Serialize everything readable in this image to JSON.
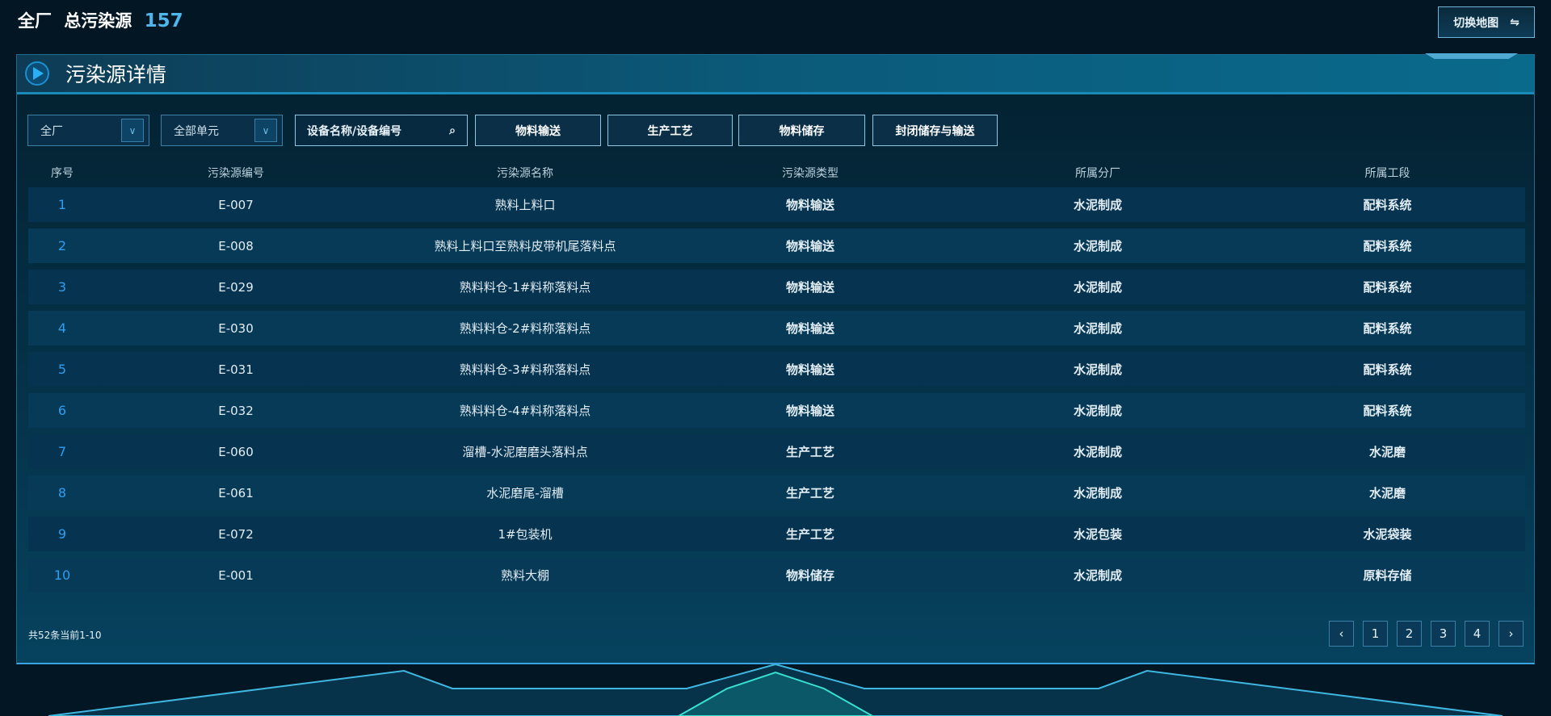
{
  "header": {
    "scope": "全厂",
    "label": "总污染源",
    "count": "157",
    "switch_label": "切换地图",
    "switch_icon": "swap-icon"
  },
  "panel": {
    "title": "污染源详情"
  },
  "filters": {
    "plant": "全厂",
    "unit": "全部单元",
    "search_placeholder": "设备名称/设备编号",
    "buttons": [
      "物料输送",
      "生产工艺",
      "物料储存",
      "封闭储存与输送"
    ]
  },
  "table": {
    "columns": [
      "序号",
      "污染源编号",
      "污染源名称",
      "污染源类型",
      "所属分厂",
      "所属工段"
    ],
    "rows": [
      [
        "1",
        "E-007",
        "熟料上料口",
        "物料输送",
        "水泥制成",
        "配料系统"
      ],
      [
        "2",
        "E-008",
        "熟料上料口至熟料皮带机尾落料点",
        "物料输送",
        "水泥制成",
        "配料系统"
      ],
      [
        "3",
        "E-029",
        "熟料料仓-1#料称落料点",
        "物料输送",
        "水泥制成",
        "配料系统"
      ],
      [
        "4",
        "E-030",
        "熟料料仓-2#料称落料点",
        "物料输送",
        "水泥制成",
        "配料系统"
      ],
      [
        "5",
        "E-031",
        "熟料料仓-3#料称落料点",
        "物料输送",
        "水泥制成",
        "配料系统"
      ],
      [
        "6",
        "E-032",
        "熟料料仓-4#料称落料点",
        "物料输送",
        "水泥制成",
        "配料系统"
      ],
      [
        "7",
        "E-060",
        "溜槽-水泥磨磨头落料点",
        "生产工艺",
        "水泥制成",
        "水泥磨"
      ],
      [
        "8",
        "E-061",
        "水泥磨尾-溜槽",
        "生产工艺",
        "水泥制成",
        "水泥磨"
      ],
      [
        "9",
        "E-072",
        "1#包装机",
        "生产工艺",
        "水泥包装",
        "水泥袋装"
      ],
      [
        "10",
        "E-001",
        "熟料大棚",
        "物料储存",
        "水泥制成",
        "原料存储"
      ]
    ]
  },
  "footer": {
    "summary": "共52条当前1-10",
    "pages": [
      "‹",
      "1",
      "2",
      "3",
      "4",
      "›"
    ]
  }
}
